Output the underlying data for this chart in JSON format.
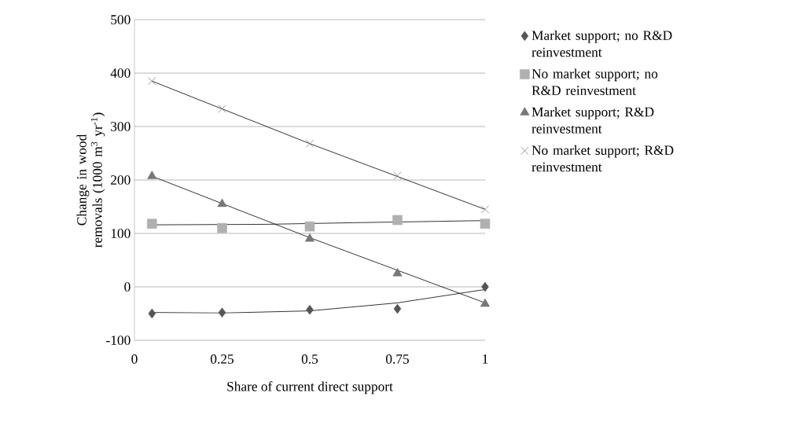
{
  "chart_data": {
    "type": "scatter",
    "xlabel": "Share of current direct support",
    "ylabel": "Change in wood removals (1000 m$^{3}$ yr$^{-1}$)",
    "x": [
      0.05,
      0.25,
      0.5,
      0.75,
      1
    ],
    "xlim": [
      0,
      1
    ],
    "xticks": [
      0,
      0.25,
      0.5,
      0.75,
      1
    ],
    "ylim": [
      -100,
      500
    ],
    "yticks": [
      -100,
      0,
      100,
      200,
      300,
      400,
      500
    ],
    "grid": "y",
    "legend": "right",
    "series": [
      {
        "name": "Market support; no R&D reinvestment",
        "color": "#555555",
        "marker": "diamond",
        "values": [
          -50,
          -48,
          -43,
          -41,
          0
        ]
      },
      {
        "name": "No market support; no R&D reinvestment",
        "color": "#b0b0b0",
        "marker": "square",
        "values": [
          118,
          110,
          113,
          125,
          118
        ]
      },
      {
        "name": "Market support; R&D reinvestment",
        "color": "#777777",
        "marker": "triangle",
        "values": [
          207,
          155,
          90,
          25,
          -32
        ]
      },
      {
        "name": "No market support; R&D reinvestment",
        "color": "#808080",
        "marker": "cross",
        "values": [
          385,
          333,
          268,
          208,
          145
        ]
      },
      {
        "type": "line",
        "color": "#000000",
        "marker": "none",
        "x": [
          0.05,
          0.25,
          0.5,
          0.75,
          1
        ],
        "values": [
          -48,
          -49,
          -45,
          -30,
          -5
        ]
      },
      {
        "type": "line",
        "color": "#000000",
        "marker": "none",
        "x": [
          0.05,
          0.375,
          0.625,
          1
        ],
        "values": [
          116,
          117,
          120,
          124
        ]
      },
      {
        "type": "line",
        "color": "#000000",
        "marker": "none",
        "x": [
          0.05,
          0.5,
          1
        ],
        "values": [
          207,
          92,
          -30
        ]
      },
      {
        "type": "line",
        "color": "#000000",
        "marker": "none",
        "x": [
          0.05,
          0.5,
          1
        ],
        "values": [
          385,
          268,
          145
        ]
      }
    ]
  }
}
